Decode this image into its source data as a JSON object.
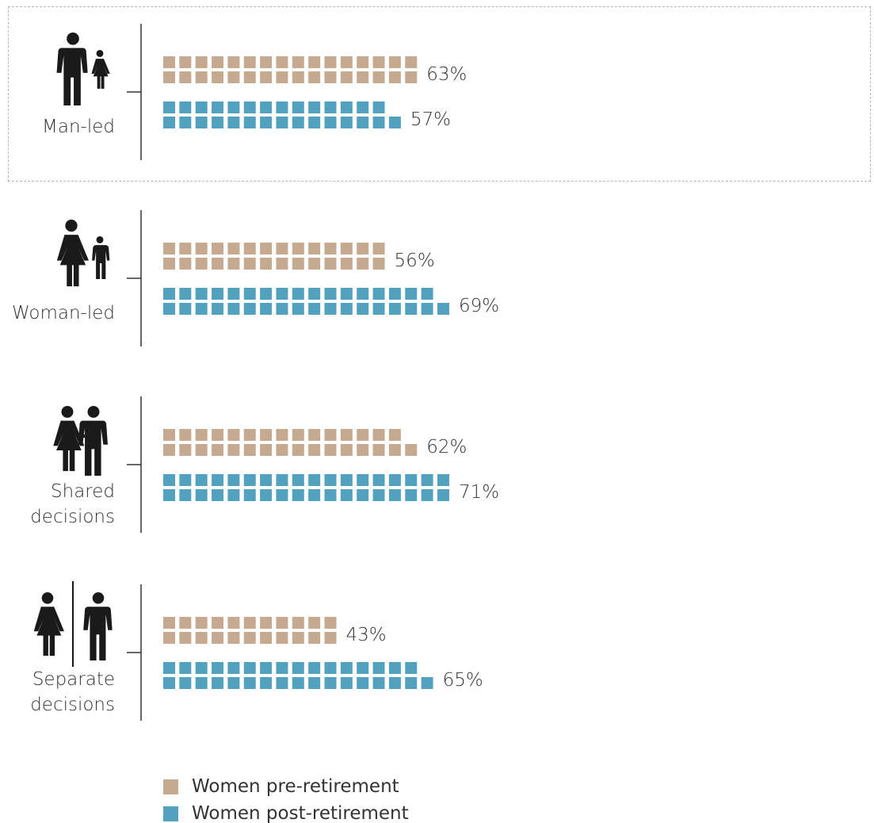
{
  "colors": {
    "pre_retirement": "#c6aa90",
    "post_retirement": "#52a2bf",
    "axis": "#333333",
    "text": "#333333",
    "icon": "#1a1a1a"
  },
  "legend": {
    "pre_label": "Women pre-retirement",
    "post_label": "Women post-retirement"
  },
  "groups": [
    {
      "label_lines": [
        "Man-led"
      ],
      "icon": "man-and-child-icon",
      "highlighted": true
    },
    {
      "label_lines": [
        "Woman-led"
      ],
      "icon": "woman-and-child-icon",
      "highlighted": false
    },
    {
      "label_lines": [
        "Shared",
        "decisions"
      ],
      "icon": "couple-holding-hands-icon",
      "highlighted": false
    },
    {
      "label_lines": [
        "Separate",
        "decisions"
      ],
      "icon": "separated-couple-icon",
      "highlighted": false
    }
  ],
  "chart_data": {
    "type": "bar",
    "title": "",
    "xlabel": "",
    "ylabel": "",
    "categories": [
      "Man-led",
      "Woman-led",
      "Shared decisions",
      "Separate decisions"
    ],
    "series": [
      {
        "name": "Women pre-retirement",
        "values": [
          63,
          56,
          62,
          43
        ],
        "labels": [
          "63%",
          "56%",
          "62%",
          "43%"
        ]
      },
      {
        "name": "Women post-retirement",
        "values": [
          57,
          69,
          71,
          65
        ],
        "labels": [
          "57%",
          "69%",
          "71%",
          "65%"
        ]
      }
    ],
    "unit": "%",
    "encoding": "pictogram grid of squares, two rows per bar"
  }
}
